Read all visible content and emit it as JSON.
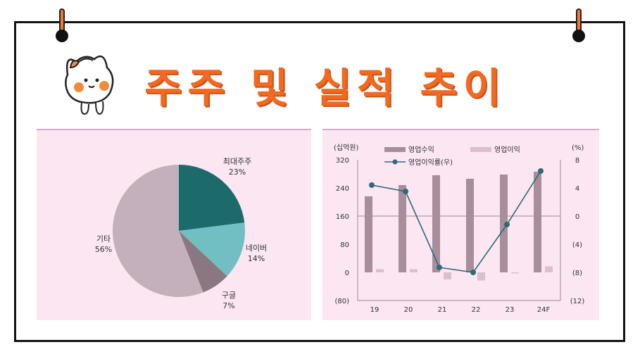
{
  "title": "주주 및 실적 추이",
  "chart_data": [
    {
      "type": "pie",
      "slices": [
        {
          "label": "최대주주",
          "pct_label": "23%",
          "value": 23,
          "color": "#1d6a6b"
        },
        {
          "label": "네이버",
          "pct_label": "14%",
          "value": 14,
          "color": "#72bfc3"
        },
        {
          "label": "구글",
          "pct_label": "7%",
          "value": 7,
          "color": "#8a7782"
        },
        {
          "label": "기타",
          "pct_label": "56%",
          "value": 56,
          "color": "#c4b0bd"
        }
      ]
    },
    {
      "type": "bar",
      "categories": [
        "19",
        "20",
        "21",
        "22",
        "23",
        "24F"
      ],
      "y_left_unit": "(십억원)",
      "y_right_unit": "(%)",
      "y_left_ticks": [
        "320",
        "240",
        "160",
        "80",
        "0",
        "(80)"
      ],
      "y_right_ticks": [
        "8",
        "4",
        "0",
        "(4)",
        "(8)",
        "(12)"
      ],
      "ylim_left": [
        -80,
        320
      ],
      "ylim_right": [
        -12,
        8
      ],
      "series": [
        {
          "name": "영업수익",
          "kind": "bar",
          "axis": "left",
          "color": "#a88d9a",
          "values": [
            216,
            248,
            276,
            266,
            278,
            286
          ]
        },
        {
          "name": "영업이익",
          "kind": "bar",
          "axis": "left",
          "color": "#dcbfcf",
          "values": [
            9,
            9,
            -20,
            -23,
            -3,
            17
          ]
        },
        {
          "name": "영업이익률(우)",
          "kind": "line",
          "axis": "right",
          "color": "#2e6a78",
          "values": [
            4.4,
            3.5,
            -7.3,
            -8.0,
            -1.2,
            6.4
          ]
        }
      ]
    }
  ]
}
